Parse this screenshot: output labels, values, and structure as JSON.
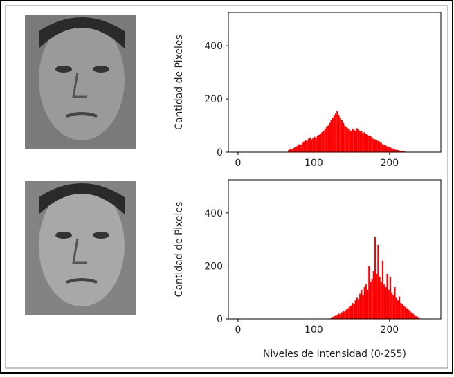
{
  "chart_data": [
    {
      "type": "histogram",
      "color": "#ff0000",
      "ylabel": "Cantidad de Pixeles",
      "xlim": [
        -12.75,
        267.75
      ],
      "ylim": [
        0,
        525
      ],
      "xticks": [
        0,
        100,
        200
      ],
      "yticks": [
        0,
        200,
        400
      ],
      "bins": [
        66,
        68,
        70,
        72,
        74,
        76,
        78,
        80,
        82,
        84,
        86,
        88,
        90,
        92,
        94,
        96,
        98,
        100,
        102,
        104,
        106,
        108,
        110,
        112,
        114,
        116,
        118,
        120,
        122,
        124,
        126,
        128,
        130,
        132,
        134,
        136,
        138,
        140,
        142,
        144,
        146,
        148,
        150,
        152,
        154,
        156,
        158,
        160,
        162,
        164,
        166,
        168,
        170,
        172,
        174,
        176,
        178,
        180,
        182,
        184,
        186,
        188,
        190,
        192,
        194,
        196,
        198,
        200,
        202,
        204,
        206,
        208,
        210,
        212,
        214,
        216,
        218,
        220
      ],
      "values": [
        8,
        12,
        10,
        15,
        18,
        22,
        25,
        30,
        28,
        35,
        40,
        45,
        42,
        50,
        55,
        48,
        52,
        58,
        55,
        62,
        65,
        70,
        75,
        80,
        88,
        95,
        100,
        110,
        120,
        130,
        140,
        145,
        155,
        140,
        130,
        120,
        110,
        100,
        95,
        90,
        85,
        80,
        88,
        85,
        80,
        90,
        85,
        78,
        80,
        72,
        75,
        70,
        65,
        62,
        60,
        55,
        50,
        48,
        45,
        42,
        40,
        35,
        30,
        28,
        25,
        22,
        20,
        18,
        15,
        12,
        10,
        8,
        8,
        6,
        5,
        5,
        4
      ]
    },
    {
      "type": "histogram",
      "color": "#ff0000",
      "ylabel": "Cantidad de Pixeles",
      "xlabel": "Niveles de Intensidad (0-255)",
      "xlim": [
        -12.75,
        267.75
      ],
      "ylim": [
        0,
        525
      ],
      "xticks": [
        0,
        100,
        200
      ],
      "yticks": [
        0,
        200,
        400
      ],
      "bins": [
        122,
        124,
        126,
        128,
        130,
        132,
        134,
        136,
        138,
        140,
        142,
        144,
        146,
        148,
        150,
        152,
        154,
        156,
        158,
        160,
        162,
        164,
        166,
        168,
        170,
        172,
        174,
        176,
        178,
        180,
        182,
        184,
        186,
        188,
        190,
        192,
        194,
        196,
        198,
        200,
        202,
        204,
        206,
        208,
        210,
        212,
        214,
        216,
        218,
        220,
        222,
        224,
        226,
        228,
        230,
        232,
        234,
        236,
        238,
        240
      ],
      "values": [
        5,
        8,
        10,
        12,
        15,
        20,
        18,
        25,
        30,
        28,
        35,
        40,
        45,
        50,
        60,
        55,
        70,
        80,
        75,
        95,
        110,
        90,
        120,
        130,
        110,
        200,
        140,
        150,
        180,
        310,
        170,
        280,
        160,
        140,
        220,
        130,
        120,
        170,
        110,
        160,
        100,
        90,
        120,
        80,
        70,
        85,
        60,
        55,
        50,
        45,
        40,
        35,
        30,
        25,
        20,
        15,
        10,
        8,
        5
      ]
    }
  ]
}
